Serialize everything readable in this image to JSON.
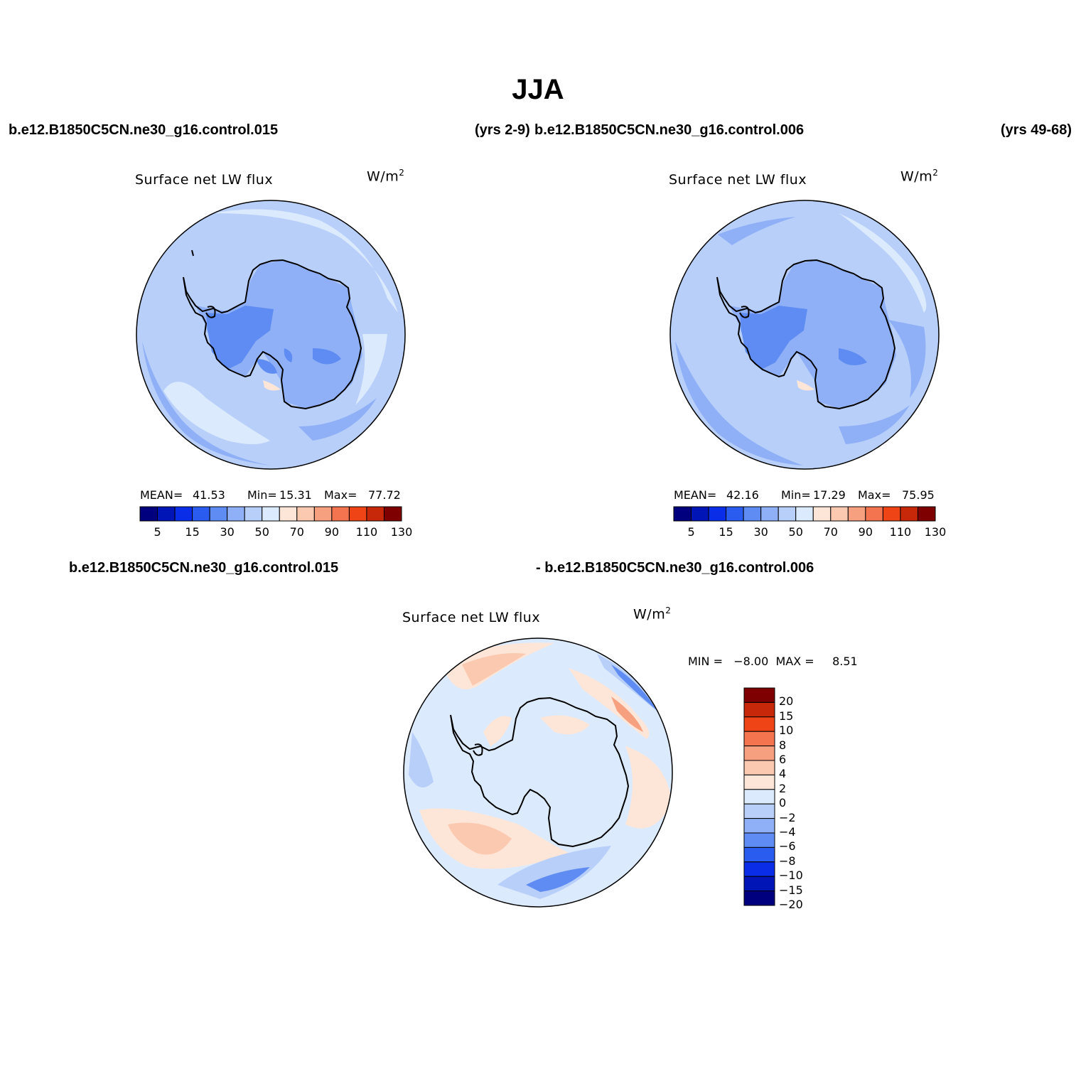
{
  "title": "JJA",
  "header": {
    "case_left": "b.e12.B1850C5CN.ne30_g16.control.015",
    "years_left": "(yrs 2-9)",
    "case_right": "b.e12.B1850C5CN.ne30_g16.control.006",
    "years_right": "(yrs 49-68)"
  },
  "diff_header": {
    "left": "b.e12.B1850C5CN.ne30_g16.control.015",
    "right": "- b.e12.B1850C5CN.ne30_g16.control.006"
  },
  "panels": [
    {
      "title": "Surface net LW flux",
      "units": "W/m",
      "units_sup": "2",
      "mean_label": "MEAN=",
      "mean": "41.53",
      "min_label": "Min=",
      "min": "15.31",
      "max_label": "Max=",
      "max": "77.72"
    },
    {
      "title": "Surface net LW flux",
      "units": "W/m",
      "units_sup": "2",
      "mean_label": "MEAN=",
      "mean": "42.16",
      "min_label": "Min=",
      "min": "17.29",
      "max_label": "Max=",
      "max": "75.95"
    },
    {
      "title": "Surface net LW flux",
      "units": "W/m",
      "units_sup": "2",
      "minmax_text": "MIN =   −8.00  MAX =     8.51"
    }
  ],
  "colorbar_h": {
    "colors": [
      "#00007f",
      "#0015b5",
      "#0a2ee8",
      "#2a5cf0",
      "#5e8cf2",
      "#8fb0f6",
      "#b8cffa",
      "#dceafd",
      "#fde6d8",
      "#fbc9b0",
      "#f7a07f",
      "#f57450",
      "#ef4415",
      "#c8280a",
      "#7f0000"
    ],
    "labels": [
      "5",
      "15",
      "30",
      "50",
      "70",
      "90",
      "110",
      "130"
    ]
  },
  "colorbar_v": {
    "colors": [
      "#00007f",
      "#0015b5",
      "#0a2ee8",
      "#2a5cf0",
      "#5e8cf2",
      "#8fb0f6",
      "#b8cffa",
      "#dceafd",
      "#fde6d8",
      "#fbc9b0",
      "#f7a07f",
      "#f57450",
      "#ef4415",
      "#c8280a",
      "#7f0000"
    ],
    "labels": [
      "−20",
      "−15",
      "−10",
      "−8",
      "−6",
      "−4",
      "−2",
      "0",
      "2",
      "4",
      "6",
      "8",
      "10",
      "15",
      "20"
    ]
  },
  "map_colors": {
    "ocean_a": "#b8cffa",
    "ocean_b": "#8fb0f6",
    "ocean_light": "#dceafd",
    "land_a": "#8fb0f6",
    "land_b": "#5e8cf2",
    "warm": "#fde6d8",
    "diff_base": "#dceafd",
    "diff_warm": "#fde6d8",
    "diff_warm2": "#fbc9b0",
    "diff_warm3": "#f7a07f",
    "diff_cool": "#b8cffa",
    "diff_cool2": "#5e8cf2",
    "diff_cool3": "#2a5cf0",
    "coast": "#000000"
  }
}
